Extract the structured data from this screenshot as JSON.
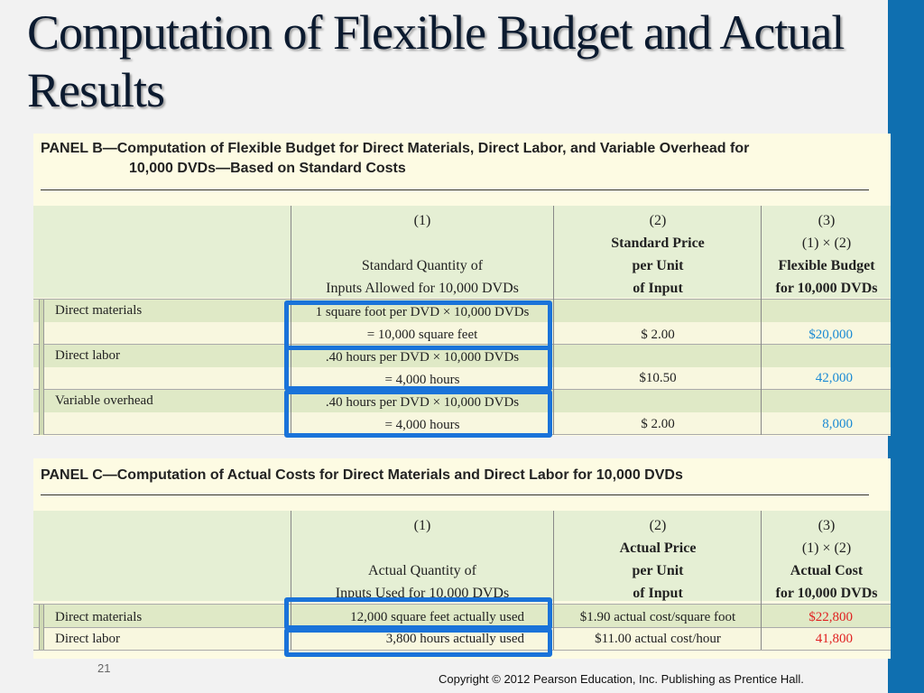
{
  "slide": {
    "title": "Computation of Flexible Budget and Actual Results",
    "page_number": "21",
    "copyright": "Copyright © 2012 Pearson Education, Inc. Publishing as Prentice Hall.",
    "accent_color": "#0f6fb0",
    "highlight_color": "#1a73d9"
  },
  "panel_b": {
    "heading_line1": "PANEL B—Computation of Flexible Budget for Direct Materials, Direct Labor, and Variable Overhead for",
    "heading_line2": "10,000 DVDs—Based on Standard Costs",
    "columns": [
      {
        "num": "(1)",
        "line1": "",
        "line2": "Standard Quantity of",
        "line3": "Inputs Allowed for 10,000 DVDs"
      },
      {
        "num": "(2)",
        "line1": "Standard Price",
        "line2": "per Unit",
        "line3": "of Input"
      },
      {
        "num": "(3)",
        "line1": "(1) × (2)",
        "line2": "Flexible Budget",
        "line3": "for 10,000 DVDs"
      }
    ],
    "rows": [
      {
        "label": "Direct materials",
        "qty_line1": "1 square foot per DVD × 10,000 DVDs",
        "qty_line2": "= 10,000 square feet",
        "price": "$  2.00",
        "total": "$20,000"
      },
      {
        "label": "Direct labor",
        "qty_line1": ".40 hours per DVD × 10,000 DVDs",
        "qty_line2": "= 4,000 hours",
        "price": "$10.50",
        "total": "42,000"
      },
      {
        "label": "Variable overhead",
        "qty_line1": ".40 hours per DVD × 10,000 DVDs",
        "qty_line2": "= 4,000 hours",
        "price": "$  2.00",
        "total": "8,000"
      }
    ]
  },
  "panel_c": {
    "heading": "PANEL C—Computation of Actual Costs for Direct Materials and Direct Labor for 10,000 DVDs",
    "columns": [
      {
        "num": "(1)",
        "line1": "",
        "line2": "Actual Quantity of",
        "line3": "Inputs Used for 10,000 DVDs"
      },
      {
        "num": "(2)",
        "line1": "Actual Price",
        "line2": "per Unit",
        "line3": "of Input"
      },
      {
        "num": "(3)",
        "line1": "(1) × (2)",
        "line2": "Actual Cost",
        "line3": "for 10,000 DVDs"
      }
    ],
    "rows": [
      {
        "label": "Direct materials",
        "qty": "12,000 square feet actually used",
        "price": "$1.90 actual cost/square foot",
        "total": "$22,800"
      },
      {
        "label": "Direct labor",
        "qty": "3,800 hours actually used",
        "price": "$11.00 actual cost/hour",
        "total": "41,800"
      }
    ]
  }
}
